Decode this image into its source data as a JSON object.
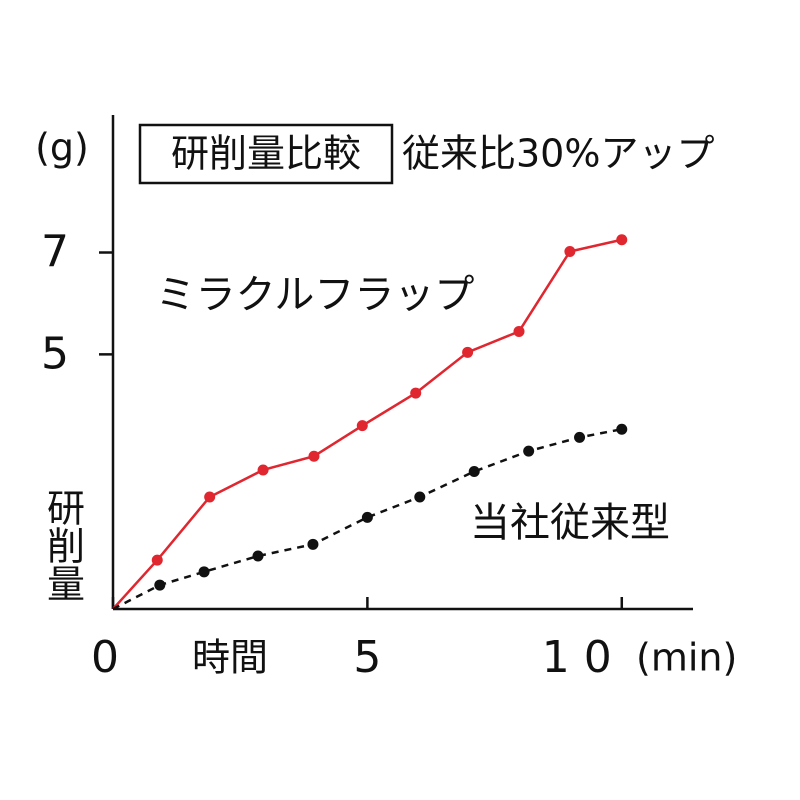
{
  "chart_data": {
    "type": "line",
    "title": "研削量比較",
    "subtitle": "従来比30%アップ",
    "y_unit": "(g)",
    "y_label": "研削量",
    "x_label": "時間",
    "x_unit": "(min)",
    "xlim": [
      0,
      11.4
    ],
    "ylim": [
      0,
      9.7
    ],
    "xticks": [
      0,
      5,
      10
    ],
    "yticks": [
      5,
      7
    ],
    "series": [
      {
        "name": "ミラクルフラップ",
        "color": "#e0262f",
        "dash": false,
        "x": [
          0,
          0.87,
          1.9,
          2.95,
          3.95,
          4.9,
          5.95,
          6.97,
          7.98,
          8.98,
          10
        ],
        "values": [
          0,
          0.96,
          2.2,
          2.73,
          3.0,
          3.6,
          4.24,
          5.04,
          5.45,
          7.02,
          7.25
        ]
      },
      {
        "name": "当社従来型",
        "color": "#111111",
        "dash": true,
        "x": [
          0,
          0.92,
          1.79,
          2.85,
          3.93,
          5.0,
          6.03,
          7.1,
          8.17,
          9.17,
          10
        ],
        "values": [
          0,
          0.47,
          0.73,
          1.04,
          1.27,
          1.8,
          2.2,
          2.7,
          3.1,
          3.37,
          3.53
        ]
      }
    ]
  }
}
